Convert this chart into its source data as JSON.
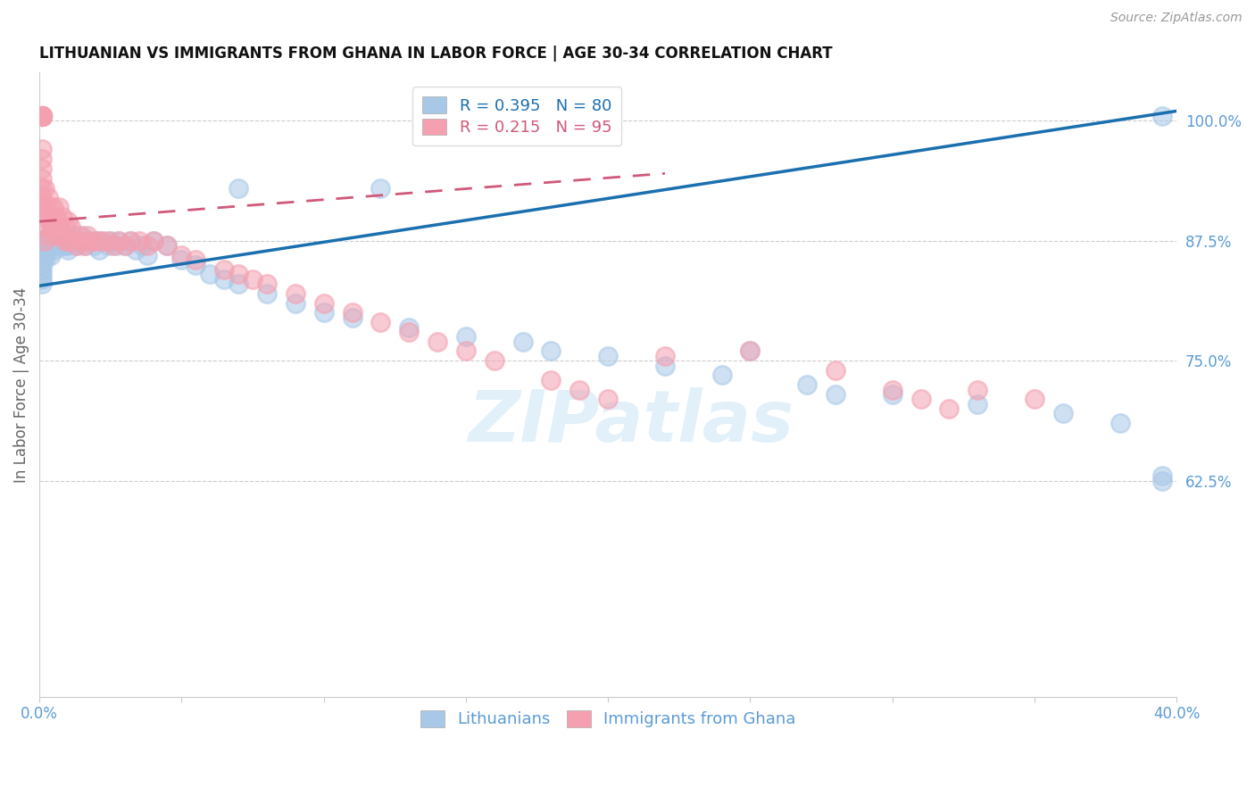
{
  "title": "LITHUANIAN VS IMMIGRANTS FROM GHANA IN LABOR FORCE | AGE 30-34 CORRELATION CHART",
  "source": "Source: ZipAtlas.com",
  "ylabel": "In Labor Force | Age 30-34",
  "legend_label1": "Lithuanians",
  "legend_label2": "Immigrants from Ghana",
  "R1": 0.395,
  "N1": 80,
  "R2": 0.215,
  "N2": 95,
  "color_blue": "#a8c8e8",
  "color_pink": "#f4a0b0",
  "color_blue_line": "#1a6faf",
  "color_pink_line": "#d05878",
  "color_label": "#5b9bd5",
  "color_axis": "#aaaaaa",
  "xmin": 0.0,
  "xmax": 0.4,
  "ymin": 0.4,
  "ymax": 1.05,
  "yticks": [
    0.625,
    0.75,
    0.875,
    1.0
  ],
  "ytick_labels": [
    "62.5%",
    "75.0%",
    "87.5%",
    "100.0%"
  ],
  "xticks": [
    0.0,
    0.05,
    0.1,
    0.15,
    0.2,
    0.25,
    0.3,
    0.35,
    0.4
  ],
  "watermark": "ZIPatlas",
  "blue_line_x": [
    0.0,
    0.4
  ],
  "blue_line_y": [
    0.828,
    1.01
  ],
  "pink_line_x": [
    0.0,
    0.22
  ],
  "pink_line_y": [
    0.895,
    0.945
  ],
  "blue_x": [
    0.001,
    0.001,
    0.001,
    0.001,
    0.001,
    0.001,
    0.001,
    0.001,
    0.001,
    0.001,
    0.002,
    0.002,
    0.002,
    0.002,
    0.002,
    0.003,
    0.003,
    0.004,
    0.004,
    0.005,
    0.005,
    0.006,
    0.007,
    0.007,
    0.008,
    0.008,
    0.009,
    0.009,
    0.01,
    0.01,
    0.011,
    0.012,
    0.013,
    0.014,
    0.015,
    0.016,
    0.018,
    0.019,
    0.02,
    0.021,
    0.022,
    0.024,
    0.025,
    0.027,
    0.028,
    0.03,
    0.032,
    0.034,
    0.036,
    0.038,
    0.04,
    0.045,
    0.05,
    0.055,
    0.06,
    0.065,
    0.07,
    0.08,
    0.09,
    0.1,
    0.11,
    0.13,
    0.15,
    0.17,
    0.18,
    0.2,
    0.22,
    0.24,
    0.27,
    0.3,
    0.33,
    0.36,
    0.38,
    0.395,
    0.07,
    0.12,
    0.25,
    0.28,
    0.395,
    0.395
  ],
  "blue_y": [
    0.875,
    0.87,
    0.865,
    0.86,
    0.855,
    0.85,
    0.845,
    0.84,
    0.835,
    0.83,
    0.875,
    0.87,
    0.865,
    0.86,
    0.855,
    0.875,
    0.865,
    0.88,
    0.86,
    0.875,
    0.865,
    0.87,
    0.88,
    0.875,
    0.88,
    0.87,
    0.875,
    0.87,
    0.87,
    0.865,
    0.88,
    0.875,
    0.87,
    0.875,
    0.88,
    0.87,
    0.875,
    0.87,
    0.875,
    0.865,
    0.875,
    0.87,
    0.875,
    0.87,
    0.875,
    0.87,
    0.875,
    0.865,
    0.87,
    0.86,
    0.875,
    0.87,
    0.855,
    0.85,
    0.84,
    0.835,
    0.83,
    0.82,
    0.81,
    0.8,
    0.795,
    0.785,
    0.775,
    0.77,
    0.76,
    0.755,
    0.745,
    0.735,
    0.725,
    0.715,
    0.705,
    0.695,
    0.685,
    1.005,
    0.93,
    0.93,
    0.76,
    0.715,
    0.63,
    0.625
  ],
  "pink_x": [
    0.001,
    0.001,
    0.001,
    0.001,
    0.001,
    0.001,
    0.001,
    0.001,
    0.001,
    0.001,
    0.001,
    0.001,
    0.001,
    0.001,
    0.001,
    0.001,
    0.001,
    0.001,
    0.001,
    0.001,
    0.001,
    0.001,
    0.001,
    0.001,
    0.001,
    0.001,
    0.001,
    0.001,
    0.001,
    0.001,
    0.002,
    0.002,
    0.002,
    0.002,
    0.003,
    0.003,
    0.003,
    0.004,
    0.004,
    0.005,
    0.005,
    0.006,
    0.006,
    0.007,
    0.007,
    0.008,
    0.008,
    0.009,
    0.009,
    0.01,
    0.01,
    0.011,
    0.012,
    0.013,
    0.014,
    0.015,
    0.016,
    0.017,
    0.018,
    0.02,
    0.022,
    0.024,
    0.026,
    0.028,
    0.03,
    0.032,
    0.035,
    0.038,
    0.04,
    0.045,
    0.05,
    0.055,
    0.065,
    0.07,
    0.075,
    0.08,
    0.09,
    0.1,
    0.11,
    0.12,
    0.13,
    0.14,
    0.15,
    0.16,
    0.18,
    0.19,
    0.2,
    0.22,
    0.25,
    0.28,
    0.3,
    0.31,
    0.32,
    0.33,
    0.35
  ],
  "pink_y": [
    1.005,
    1.005,
    1.005,
    1.005,
    1.005,
    1.005,
    1.005,
    1.005,
    1.005,
    1.005,
    1.005,
    1.005,
    1.005,
    1.005,
    1.005,
    1.005,
    1.005,
    1.005,
    1.005,
    1.005,
    1.005,
    1.005,
    0.97,
    0.96,
    0.95,
    0.94,
    0.93,
    0.92,
    0.91,
    0.9,
    0.93,
    0.91,
    0.89,
    0.875,
    0.92,
    0.9,
    0.88,
    0.91,
    0.89,
    0.91,
    0.89,
    0.9,
    0.88,
    0.91,
    0.89,
    0.9,
    0.88,
    0.89,
    0.875,
    0.895,
    0.875,
    0.89,
    0.875,
    0.87,
    0.88,
    0.875,
    0.87,
    0.88,
    0.875,
    0.875,
    0.875,
    0.875,
    0.87,
    0.875,
    0.87,
    0.875,
    0.875,
    0.87,
    0.875,
    0.87,
    0.86,
    0.855,
    0.845,
    0.84,
    0.835,
    0.83,
    0.82,
    0.81,
    0.8,
    0.79,
    0.78,
    0.77,
    0.76,
    0.75,
    0.73,
    0.72,
    0.71,
    0.755,
    0.76,
    0.74,
    0.72,
    0.71,
    0.7,
    0.72,
    0.71
  ]
}
